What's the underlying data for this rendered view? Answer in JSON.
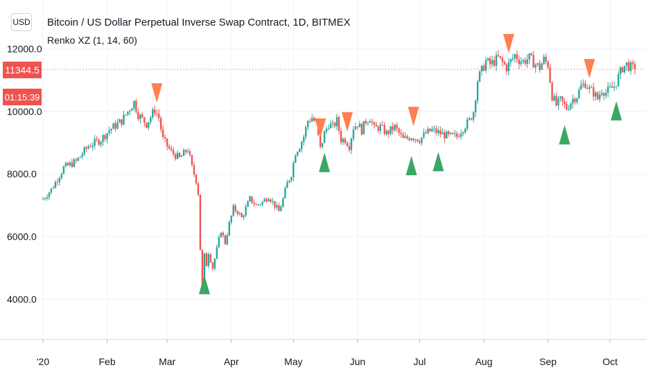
{
  "header": {
    "currency_label": "USD",
    "title": "Bitcoin / US Dollar Perpetual Inverse Swap Contract, 1D, BITMEX",
    "indicator": "Renko XZ (1, 14, 60)"
  },
  "price_badges": {
    "last_price": "11344.5",
    "countdown": "01:15:39"
  },
  "colors": {
    "up": "#26a69a",
    "down": "#ef5350",
    "buy_marker": "#3aa864",
    "sell_marker": "#ff7f4f",
    "grid": "#f0f3fa",
    "axis_text": "#131722"
  },
  "chart_data": {
    "type": "candlestick",
    "instrument": "Bitcoin / US Dollar Perpetual Inverse Swap Contract",
    "interval": "1D",
    "exchange": "BITMEX",
    "x_tick_labels": [
      {
        "label": "'20",
        "day": 0
      },
      {
        "label": "Feb",
        "day": 31
      },
      {
        "label": "Mar",
        "day": 60
      },
      {
        "label": "Apr",
        "day": 91
      },
      {
        "label": "May",
        "day": 121
      },
      {
        "label": "Jun",
        "day": 152
      },
      {
        "label": "Jul",
        "day": 182
      },
      {
        "label": "Aug",
        "day": 213
      },
      {
        "label": "Sep",
        "day": 244
      },
      {
        "label": "Oct",
        "day": 274
      }
    ],
    "y_ticks": [
      4000,
      6000,
      8000,
      10000,
      12000
    ],
    "y_tick_labels": [
      "4000.0",
      "6000.0",
      "8000.0",
      "10000.0",
      "12000.0"
    ],
    "ylim": [
      3000,
      13600
    ],
    "xlim_days": [
      0,
      288
    ],
    "last_price": 11344.5,
    "close_anchors": [
      [
        0,
        7200
      ],
      [
        4,
        7500
      ],
      [
        10,
        8200
      ],
      [
        16,
        8400
      ],
      [
        22,
        8900
      ],
      [
        28,
        9100
      ],
      [
        32,
        9400
      ],
      [
        38,
        9700
      ],
      [
        42,
        10100
      ],
      [
        44,
        10300
      ],
      [
        46,
        9900
      ],
      [
        50,
        9600
      ],
      [
        54,
        10050
      ],
      [
        56,
        9800
      ],
      [
        58,
        9100
      ],
      [
        62,
        8700
      ],
      [
        66,
        8500
      ],
      [
        70,
        8800
      ],
      [
        72,
        8200
      ],
      [
        74,
        7800
      ],
      [
        75,
        7400
      ],
      [
        76,
        5600
      ],
      [
        77,
        4300
      ],
      [
        78,
        5400
      ],
      [
        79,
        5100
      ],
      [
        80,
        5500
      ],
      [
        82,
        5000
      ],
      [
        84,
        5600
      ],
      [
        86,
        6200
      ],
      [
        88,
        5800
      ],
      [
        90,
        6400
      ],
      [
        92,
        6900
      ],
      [
        94,
        6800
      ],
      [
        96,
        6600
      ],
      [
        98,
        6900
      ],
      [
        100,
        7200
      ],
      [
        103,
        7000
      ],
      [
        106,
        7100
      ],
      [
        109,
        7300
      ],
      [
        112,
        7000
      ],
      [
        114,
        6800
      ],
      [
        116,
        7200
      ],
      [
        118,
        7700
      ],
      [
        120,
        8000
      ],
      [
        122,
        8700
      ],
      [
        124,
        8900
      ],
      [
        126,
        9200
      ],
      [
        128,
        9700
      ],
      [
        130,
        9800
      ],
      [
        132,
        9600
      ],
      [
        134,
        8800
      ],
      [
        136,
        9300
      ],
      [
        138,
        9600
      ],
      [
        140,
        9500
      ],
      [
        142,
        9700
      ],
      [
        144,
        9100
      ],
      [
        146,
        9100
      ],
      [
        148,
        8900
      ],
      [
        150,
        9500
      ],
      [
        152,
        9600
      ],
      [
        154,
        9400
      ],
      [
        156,
        9700
      ],
      [
        158,
        9800
      ],
      [
        160,
        9450
      ],
      [
        163,
        9500
      ],
      [
        166,
        9300
      ],
      [
        170,
        9500
      ],
      [
        174,
        9100
      ],
      [
        178,
        9200
      ],
      [
        182,
        9100
      ],
      [
        185,
        9300
      ],
      [
        188,
        9400
      ],
      [
        192,
        9300
      ],
      [
        196,
        9200
      ],
      [
        200,
        9200
      ],
      [
        202,
        9400
      ],
      [
        204,
        9550
      ],
      [
        206,
        9700
      ],
      [
        208,
        10000
      ],
      [
        210,
        11000
      ],
      [
        212,
        11300
      ],
      [
        214,
        11600
      ],
      [
        216,
        11500
      ],
      [
        220,
        11700
      ],
      [
        224,
        11400
      ],
      [
        228,
        11800
      ],
      [
        230,
        11650
      ],
      [
        232,
        11600
      ],
      [
        235,
        11700
      ],
      [
        238,
        11500
      ],
      [
        240,
        11400
      ],
      [
        242,
        11650
      ],
      [
        244,
        11500
      ],
      [
        246,
        10500
      ],
      [
        248,
        10200
      ],
      [
        250,
        10350
      ],
      [
        253,
        10100
      ],
      [
        256,
        10400
      ],
      [
        258,
        10500
      ],
      [
        260,
        10800
      ],
      [
        262,
        10900
      ],
      [
        264,
        10700
      ],
      [
        266,
        10600
      ],
      [
        268,
        10400
      ],
      [
        270,
        10700
      ],
      [
        272,
        10600
      ],
      [
        276,
        10800
      ],
      [
        278,
        11100
      ],
      [
        280,
        11400
      ],
      [
        282,
        11500
      ],
      [
        284,
        11400
      ],
      [
        286,
        11344.5
      ]
    ],
    "signals": [
      {
        "type": "sell",
        "day": 55
      },
      {
        "type": "buy",
        "day": 78
      },
      {
        "type": "sell",
        "day": 134
      },
      {
        "type": "buy",
        "day": 136
      },
      {
        "type": "sell",
        "day": 147
      },
      {
        "type": "sell",
        "day": 179
      },
      {
        "type": "buy",
        "day": 178
      },
      {
        "type": "buy",
        "day": 191
      },
      {
        "type": "sell",
        "day": 225
      },
      {
        "type": "buy",
        "day": 252
      },
      {
        "type": "sell",
        "day": 264
      },
      {
        "type": "buy",
        "day": 277
      }
    ]
  }
}
